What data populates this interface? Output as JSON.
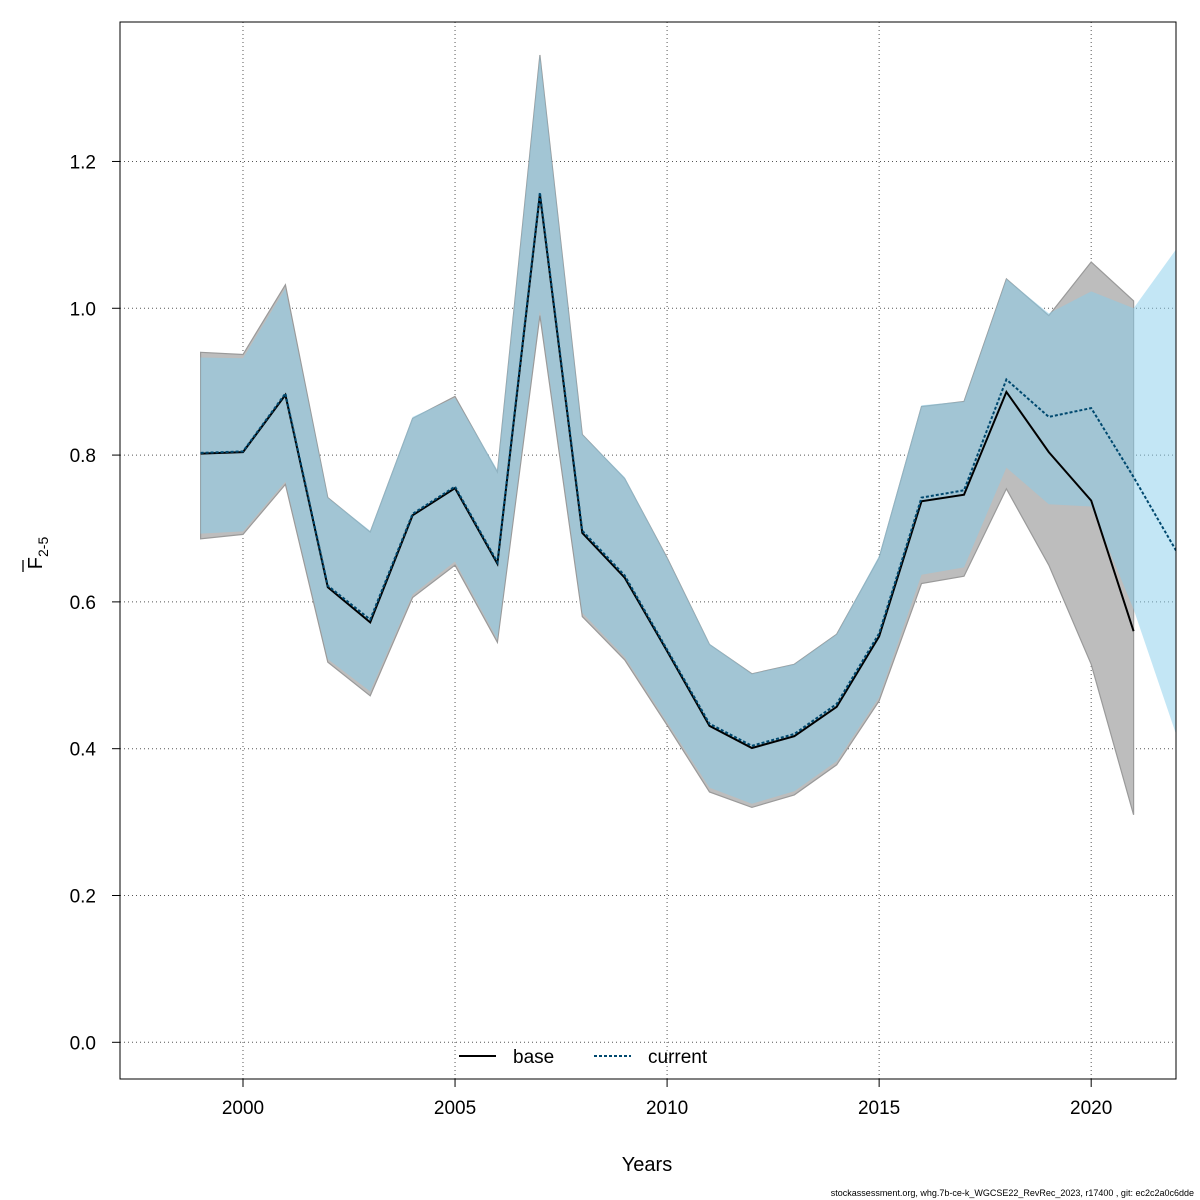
{
  "chart_data": {
    "type": "line",
    "xlabel": "Years",
    "ylabel_main": "F",
    "ylabel_sub": "2-5",
    "xlim": [
      1997.1,
      2022
    ],
    "ylim": [
      -0.05,
      1.39
    ],
    "xticks": [
      2000,
      2005,
      2010,
      2015,
      2020
    ],
    "yticks": [
      0.0,
      0.2,
      0.4,
      0.6,
      0.8,
      1.0,
      1.2
    ],
    "ytick_labels": [
      "0.0",
      "0.2",
      "0.4",
      "0.6",
      "0.8",
      "1.0",
      "1.2"
    ],
    "grid": true,
    "legend_position": "bottom",
    "colors": {
      "base_band": "#bdbdbd",
      "base_band_edge": "#9a9a9a",
      "current_band": "#87CEEB",
      "current_band_opacity": 0.5,
      "base_line": "#000000",
      "current_line": "#00496f"
    },
    "x": [
      1999,
      2000,
      2001,
      2002,
      2003,
      2004,
      2005,
      2006,
      2007,
      2008,
      2009,
      2010,
      2011,
      2012,
      2013,
      2014,
      2015,
      2016,
      2017,
      2018,
      2019,
      2020,
      2021,
      2022
    ],
    "series": [
      {
        "name": "base",
        "style": "solid",
        "x": [
          1999,
          2000,
          2001,
          2002,
          2003,
          2004,
          2005,
          2006,
          2007,
          2008,
          2009,
          2010,
          2011,
          2012,
          2013,
          2014,
          2015,
          2016,
          2017,
          2018,
          2019,
          2020,
          2021
        ],
        "values": [
          0.802,
          0.804,
          0.882,
          0.62,
          0.572,
          0.718,
          0.755,
          0.652,
          1.155,
          0.694,
          0.633,
          0.533,
          0.431,
          0.401,
          0.417,
          0.457,
          0.553,
          0.737,
          0.746,
          0.886,
          0.804,
          0.738,
          0.56
        ],
        "lower": [
          0.686,
          0.692,
          0.76,
          0.518,
          0.472,
          0.606,
          0.65,
          0.545,
          0.99,
          0.58,
          0.521,
          0.432,
          0.341,
          0.32,
          0.337,
          0.378,
          0.465,
          0.625,
          0.635,
          0.754,
          0.65,
          0.515,
          0.31
        ],
        "upper": [
          0.94,
          0.937,
          1.032,
          0.742,
          0.695,
          0.85,
          0.88,
          0.777,
          1.345,
          0.828,
          0.768,
          0.66,
          0.542,
          0.502,
          0.515,
          0.556,
          0.66,
          0.866,
          0.873,
          1.04,
          0.99,
          1.063,
          1.01
        ]
      },
      {
        "name": "current",
        "style": "dotted",
        "x": [
          1999,
          2000,
          2001,
          2002,
          2003,
          2004,
          2005,
          2006,
          2007,
          2008,
          2009,
          2010,
          2011,
          2012,
          2013,
          2014,
          2015,
          2016,
          2017,
          2018,
          2019,
          2020,
          2021,
          2022
        ],
        "values": [
          0.803,
          0.805,
          0.884,
          0.622,
          0.576,
          0.72,
          0.757,
          0.654,
          1.158,
          0.697,
          0.636,
          0.535,
          0.434,
          0.404,
          0.42,
          0.461,
          0.557,
          0.742,
          0.752,
          0.903,
          0.852,
          0.864,
          0.77,
          0.67
        ],
        "lower": [
          0.693,
          0.696,
          0.764,
          0.522,
          0.478,
          0.61,
          0.655,
          0.549,
          0.997,
          0.585,
          0.525,
          0.436,
          0.347,
          0.325,
          0.342,
          0.383,
          0.47,
          0.637,
          0.647,
          0.783,
          0.733,
          0.73,
          0.59,
          0.42
        ],
        "upper": [
          0.933,
          0.932,
          1.027,
          0.742,
          0.697,
          0.852,
          0.878,
          0.78,
          1.345,
          0.828,
          0.77,
          0.66,
          0.543,
          0.502,
          0.515,
          0.556,
          0.663,
          0.868,
          0.873,
          1.04,
          0.993,
          1.023,
          1.0,
          1.08
        ]
      }
    ]
  },
  "footer": "stockassessment.org, whg.7b-ce-k_WGCSE22_RevRec_2023, r17400 , git: ec2c2a0c6dde"
}
